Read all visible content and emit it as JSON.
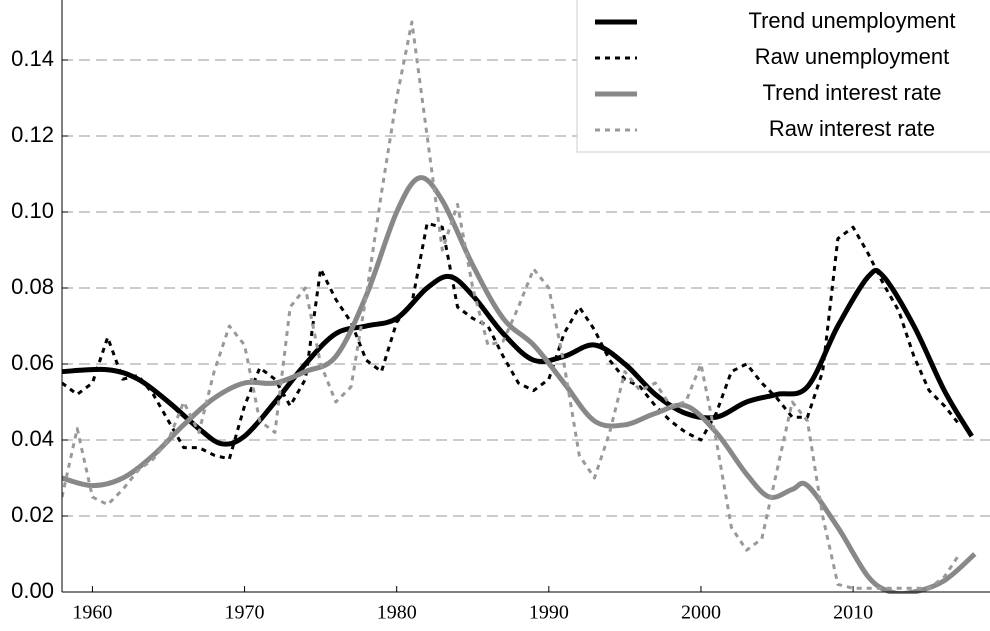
{
  "chart_data": {
    "type": "line",
    "xlim": [
      1958,
      2019
    ],
    "ylim": [
      0,
      0.15
    ],
    "xticks": [
      1960,
      1970,
      1980,
      1990,
      2000,
      2010
    ],
    "yticks": [
      {
        "value": 0,
        "label": "0.00"
      },
      {
        "value": 0.02,
        "label": "0.02"
      },
      {
        "value": 0.04,
        "label": "0.04"
      },
      {
        "value": 0.06,
        "label": "0.06"
      },
      {
        "value": 0.08,
        "label": "0.08"
      },
      {
        "value": 0.1,
        "label": "0.10"
      },
      {
        "value": 0.12,
        "label": "0.12"
      },
      {
        "value": 0.14,
        "label": "0.14"
      }
    ],
    "grid": true,
    "legend": "top-right",
    "series": [
      {
        "name": "Trend unemployment",
        "color": "#000000",
        "style": "solid",
        "smooth": true,
        "x": [
          1958,
          1961,
          1963,
          1965,
          1967,
          1968.5,
          1970,
          1972,
          1974,
          1976,
          1978,
          1980,
          1982,
          1983.5,
          1985,
          1987,
          1989,
          1991,
          1993,
          1995,
          1997,
          1999,
          2001,
          2003,
          2005,
          2007,
          2009,
          2011,
          2012,
          2014,
          2016,
          2017.8
        ],
        "values": [
          0.058,
          0.0585,
          0.056,
          0.05,
          0.043,
          0.039,
          0.041,
          0.05,
          0.06,
          0.068,
          0.07,
          0.072,
          0.08,
          0.083,
          0.078,
          0.068,
          0.061,
          0.062,
          0.065,
          0.06,
          0.052,
          0.047,
          0.046,
          0.05,
          0.052,
          0.054,
          0.07,
          0.083,
          0.083,
          0.07,
          0.053,
          0.041
        ]
      },
      {
        "name": "Raw unemployment",
        "color": "#000000",
        "style": "dotted",
        "smooth": false,
        "x": [
          1958,
          1959,
          1960,
          1961,
          1962,
          1963,
          1964,
          1965,
          1966,
          1967,
          1968,
          1969,
          1970,
          1971,
          1972,
          1973,
          1974,
          1975,
          1976,
          1977,
          1978,
          1979,
          1980,
          1981,
          1982,
          1983,
          1984,
          1985,
          1986,
          1987,
          1988,
          1989,
          1990,
          1991,
          1992,
          1993,
          1994,
          1995,
          1996,
          1997,
          1998,
          1999,
          2000,
          2001,
          2002,
          2003,
          2004,
          2005,
          2006,
          2007,
          2008,
          2009,
          2010,
          2011,
          2012,
          2013,
          2014,
          2015,
          2016,
          2017
        ],
        "values": [
          0.055,
          0.052,
          0.055,
          0.067,
          0.056,
          0.057,
          0.052,
          0.045,
          0.038,
          0.038,
          0.036,
          0.035,
          0.049,
          0.059,
          0.056,
          0.049,
          0.056,
          0.085,
          0.077,
          0.071,
          0.061,
          0.058,
          0.071,
          0.076,
          0.097,
          0.096,
          0.075,
          0.072,
          0.07,
          0.062,
          0.055,
          0.053,
          0.056,
          0.068,
          0.075,
          0.069,
          0.061,
          0.056,
          0.054,
          0.049,
          0.045,
          0.042,
          0.04,
          0.047,
          0.058,
          0.06,
          0.055,
          0.051,
          0.046,
          0.046,
          0.058,
          0.093,
          0.096,
          0.089,
          0.081,
          0.074,
          0.062,
          0.053,
          0.049,
          0.044
        ]
      },
      {
        "name": "Trend interest rate",
        "color": "#888888",
        "style": "solid",
        "smooth": true,
        "x": [
          1958,
          1960,
          1962,
          1964,
          1966,
          1968,
          1970,
          1972,
          1974,
          1976,
          1978,
          1980,
          1981.5,
          1983,
          1985,
          1987,
          1989,
          1991,
          1993,
          1995,
          1997,
          1999,
          2001,
          2003,
          2004.5,
          2006,
          2007,
          2009,
          2011,
          2012.5,
          2014,
          2016,
          2018
        ],
        "values": [
          0.03,
          0.028,
          0.03,
          0.036,
          0.044,
          0.051,
          0.055,
          0.055,
          0.058,
          0.062,
          0.078,
          0.1,
          0.109,
          0.103,
          0.086,
          0.072,
          0.065,
          0.055,
          0.045,
          0.044,
          0.047,
          0.049,
          0.042,
          0.031,
          0.025,
          0.027,
          0.028,
          0.017,
          0.004,
          0,
          0,
          0.003,
          0.01
        ]
      },
      {
        "name": "Raw interest rate",
        "color": "#999999",
        "style": "dotted",
        "smooth": false,
        "x": [
          1958,
          1959,
          1960,
          1961,
          1962,
          1963,
          1964,
          1965,
          1966,
          1967,
          1968,
          1969,
          1970,
          1971,
          1972,
          1973,
          1974,
          1975,
          1976,
          1977,
          1978,
          1979,
          1980,
          1981,
          1982,
          1983,
          1984,
          1985,
          1986,
          1987,
          1988,
          1989,
          1990,
          1991,
          1992,
          1993,
          1994,
          1995,
          1996,
          1997,
          1998,
          1999,
          2000,
          2001,
          2002,
          2003,
          2004,
          2005,
          2006,
          2007,
          2008,
          2009,
          2010,
          2011,
          2012,
          2013,
          2014,
          2015,
          2016,
          2017
        ],
        "values": [
          0.025,
          0.043,
          0.025,
          0.023,
          0.027,
          0.032,
          0.035,
          0.04,
          0.05,
          0.042,
          0.058,
          0.07,
          0.065,
          0.045,
          0.042,
          0.075,
          0.08,
          0.06,
          0.05,
          0.054,
          0.078,
          0.105,
          0.13,
          0.15,
          0.12,
          0.09,
          0.102,
          0.08,
          0.065,
          0.066,
          0.075,
          0.085,
          0.08,
          0.06,
          0.036,
          0.03,
          0.042,
          0.058,
          0.053,
          0.055,
          0.049,
          0.05,
          0.06,
          0.04,
          0.017,
          0.011,
          0.014,
          0.032,
          0.05,
          0.045,
          0.02,
          0.002,
          0.001,
          0.001,
          0.001,
          0.001,
          0.001,
          0.001,
          0.004,
          0.01
        ]
      }
    ]
  }
}
